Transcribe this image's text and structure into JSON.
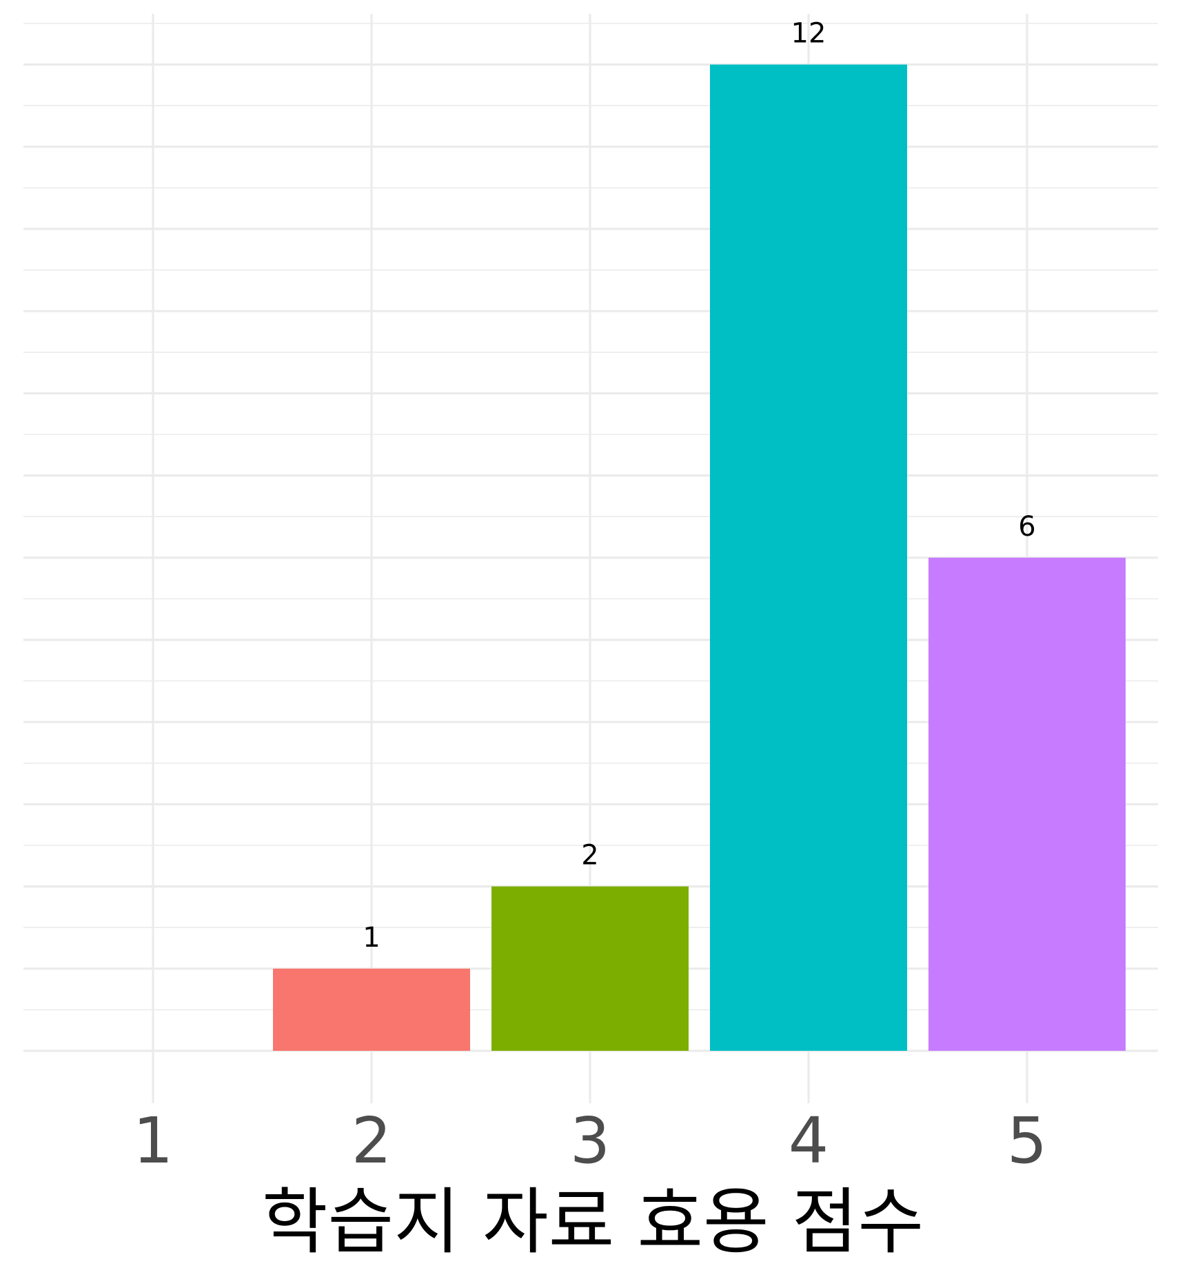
{
  "chart_data": {
    "type": "bar",
    "categories": [
      "1",
      "2",
      "3",
      "4",
      "5"
    ],
    "values": [
      0,
      1,
      2,
      12,
      6
    ],
    "data_labels": [
      "",
      "1",
      "2",
      "12",
      "6"
    ],
    "colors": [
      "#F8766D",
      "#F8766D",
      "#7CAE00",
      "#00BFC4",
      "#C77CFF"
    ],
    "title": "",
    "xlabel": "학습지 자료 효용 점수",
    "ylabel": "",
    "ylim": [
      0,
      12.5
    ],
    "grid": true,
    "legend": "none"
  }
}
